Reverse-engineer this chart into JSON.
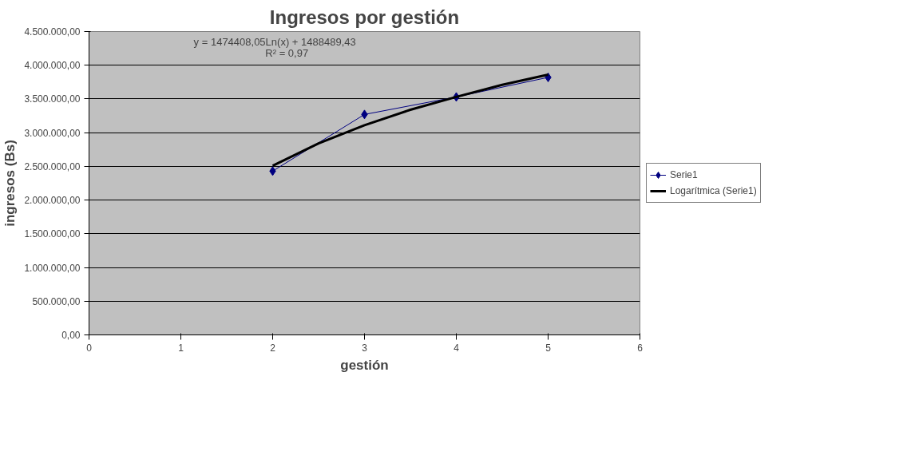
{
  "chart_data": {
    "type": "line",
    "title": "Ingresos por gestión",
    "xlabel": "gestión",
    "ylabel": "ingresos (Bs)",
    "x": [
      2,
      3,
      4,
      5
    ],
    "series": [
      {
        "name": "Serie1",
        "color": "#000080",
        "values": [
          2430000,
          3270000,
          3530000,
          3820000
        ],
        "marker": "diamond"
      },
      {
        "name": "Logarítmica (Serie1)",
        "color": "#000000",
        "type": "line",
        "marker": "none",
        "x": [
          2,
          2.5,
          3,
          3.5,
          4,
          4.5,
          5
        ],
        "values": [
          2510000,
          2840000,
          3110000,
          3340000,
          3530000,
          3710000,
          3860000
        ]
      }
    ],
    "annotations": [
      "y = 1474408,05Ln(x) + 1488489,43",
      "R² = 0,97"
    ],
    "xlim": [
      0,
      6
    ],
    "xticks": [
      0,
      1,
      2,
      3,
      4,
      5,
      6
    ],
    "ylim": [
      0,
      4500000
    ],
    "yticks": [
      {
        "value": 0,
        "label": "0,00"
      },
      {
        "value": 500000,
        "label": "500.000,00"
      },
      {
        "value": 1000000,
        "label": "1.000.000,00"
      },
      {
        "value": 1500000,
        "label": "1.500.000,00"
      },
      {
        "value": 2000000,
        "label": "2.000.000,00"
      },
      {
        "value": 2500000,
        "label": "2.500.000,00"
      },
      {
        "value": 3000000,
        "label": "3.000.000,00"
      },
      {
        "value": 3500000,
        "label": "3.500.000,00"
      },
      {
        "value": 4000000,
        "label": "4.000.000,00"
      },
      {
        "value": 4500000,
        "label": "4.500.000,00"
      }
    ],
    "grid": "y",
    "legend": "right"
  }
}
